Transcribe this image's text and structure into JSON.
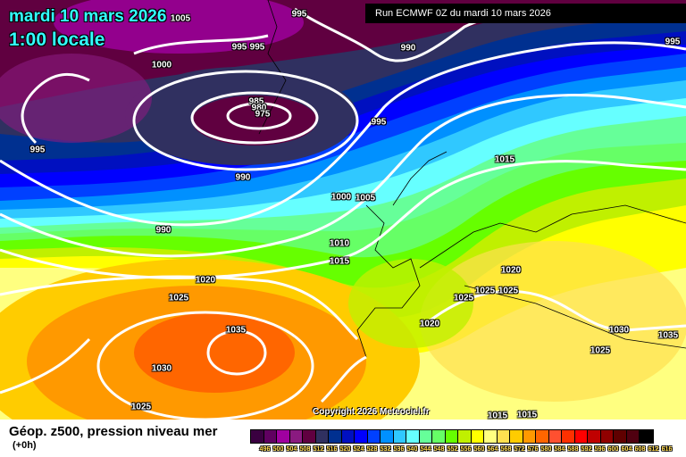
{
  "header": {
    "date": "mardi 10 mars 2026",
    "time": "1:00 locale",
    "run": "Run ECMWF 0Z du mardi 10 mars 2026"
  },
  "copyright": "Copyright 2026 Meteociel.fr",
  "footer": {
    "title": "Géop. z500, pression niveau mer",
    "subtitle": "(+0h)"
  },
  "isobar_labels": [
    "1005",
    "995",
    "995",
    "995",
    "990",
    "1000",
    "985",
    "980",
    "975",
    "995",
    "995",
    "990",
    "990",
    "1000",
    "1005",
    "1015",
    "1010",
    "1015",
    "1020",
    "1020",
    "1025",
    "1025",
    "1025",
    "1025",
    "1020",
    "1035",
    "1030",
    "1030",
    "1035",
    "1025",
    "1025",
    "1015",
    "1015",
    "995"
  ],
  "legend": {
    "unit_labels": [
      "496",
      "500",
      "504",
      "508",
      "512",
      "516",
      "520",
      "524",
      "528",
      "532",
      "536",
      "540",
      "544",
      "548",
      "552",
      "556",
      "560",
      "564",
      "568",
      "572",
      "576",
      "580",
      "584",
      "588",
      "592",
      "596",
      "600",
      "604",
      "608",
      "612",
      "616"
    ],
    "colors": [
      "#3a0040",
      "#600060",
      "#a000a0",
      "#8a1a80",
      "#600040",
      "#303060",
      "#003090",
      "#0010c0",
      "#0000ff",
      "#0040ff",
      "#0090ff",
      "#30c8ff",
      "#66ffff",
      "#66ff99",
      "#66ff66",
      "#66ff00",
      "#c0f000",
      "#ffff00",
      "#ffff80",
      "#ffe050",
      "#ffcc00",
      "#ff9900",
      "#ff6600",
      "#ff5030",
      "#ff3000",
      "#ff0000",
      "#c00000",
      "#900000",
      "#600000",
      "#500010",
      "#000000"
    ]
  }
}
